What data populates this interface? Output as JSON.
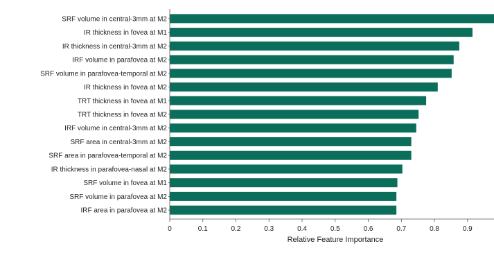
{
  "chart_data": {
    "type": "bar",
    "orientation": "horizontal",
    "categories": [
      "SRF volume in central-3mm at M2",
      "IR thickness in fovea at M1",
      "IR thickness in central-3mm at M2",
      "IRF volume in parafovea at M2",
      "SRF volume in parafovea-temporal at M2",
      "IR thickness in fovea at M2",
      "TRT thickness in fovea at M1",
      "TRT thickness in fovea at M2",
      "IRF volume in central-3mm at M2",
      "SRF area in central-3mm at M2",
      "SRF area in parafovea-temporal at M2",
      "IR thickness in parafovea-nasal at M2",
      "SRF volume in fovea at M1",
      "SRF volume in parafovea at M2",
      "IRF area in parafovea at M2"
    ],
    "values": [
      1.0,
      0.915,
      0.875,
      0.858,
      0.852,
      0.81,
      0.775,
      0.752,
      0.745,
      0.73,
      0.73,
      0.703,
      0.688,
      0.685,
      0.685
    ],
    "xlabel": "Relative Feature Importance",
    "ylabel": "",
    "xlim": [
      0,
      0.98
    ],
    "xticks": [
      0,
      0.1,
      0.2,
      0.3,
      0.4,
      0.5,
      0.6,
      0.7,
      0.8,
      0.9
    ],
    "bar_color": "#0b6e5a",
    "grid": false,
    "legend": "none"
  }
}
